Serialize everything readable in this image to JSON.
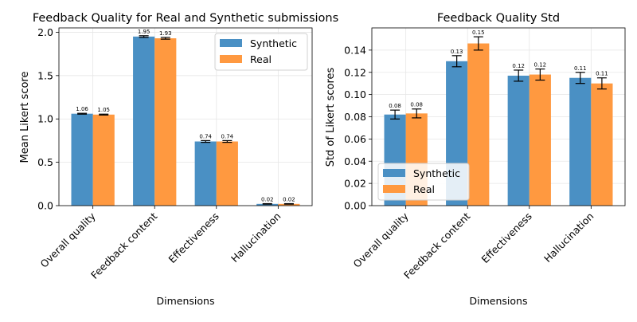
{
  "chart_data": [
    {
      "type": "bar",
      "title": "Feedback Quality for Real and Synthetic submissions",
      "xlabel": "Dimensions",
      "ylabel": "Mean Likert score",
      "categories": [
        "Overall quality",
        "Feedback content",
        "Effectiveness",
        "Hallucination"
      ],
      "ylim": [
        0,
        2.05
      ],
      "yticks": [
        "0.0",
        "0.5",
        "1.0",
        "1.5",
        "2.0"
      ],
      "ytick_values": [
        0,
        0.5,
        1.0,
        1.5,
        2.0
      ],
      "legend_position": "top-right",
      "series": [
        {
          "name": "Synthetic",
          "color": "#4a90c4",
          "values": [
            1.06,
            1.95,
            0.74,
            0.02
          ],
          "errors": [
            0.005,
            0.01,
            0.01,
            0.003
          ],
          "labels": [
            "1.06",
            "1.95",
            "0.74",
            "0.02"
          ]
        },
        {
          "name": "Real",
          "color": "#ff9940",
          "values": [
            1.05,
            1.93,
            0.74,
            0.02
          ],
          "errors": [
            0.005,
            0.01,
            0.01,
            0.003
          ],
          "labels": [
            "1.05",
            "1.93",
            "0.74",
            "0.02"
          ]
        }
      ]
    },
    {
      "type": "bar",
      "title": "Feedback Quality Std",
      "xlabel": "Dimensions",
      "ylabel": "Std of Likert scores",
      "categories": [
        "Overall quality",
        "Feedback content",
        "Effectiveness",
        "Hallucination"
      ],
      "ylim": [
        0,
        0.16
      ],
      "yticks": [
        "0.00",
        "0.02",
        "0.04",
        "0.06",
        "0.08",
        "0.10",
        "0.12",
        "0.14"
      ],
      "ytick_values": [
        0,
        0.02,
        0.04,
        0.06,
        0.08,
        0.1,
        0.12,
        0.14
      ],
      "legend_position": "lower-left",
      "series": [
        {
          "name": "Synthetic",
          "color": "#4a90c4",
          "values": [
            0.082,
            0.13,
            0.117,
            0.115
          ],
          "errors": [
            0.004,
            0.005,
            0.005,
            0.005
          ],
          "labels": [
            "0.08",
            "0.13",
            "0.12",
            "0.11"
          ]
        },
        {
          "name": "Real",
          "color": "#ff9940",
          "values": [
            0.083,
            0.146,
            0.118,
            0.11
          ],
          "errors": [
            0.004,
            0.006,
            0.005,
            0.005
          ],
          "labels": [
            "0.08",
            "0.15",
            "0.12",
            "0.11"
          ]
        }
      ]
    }
  ]
}
